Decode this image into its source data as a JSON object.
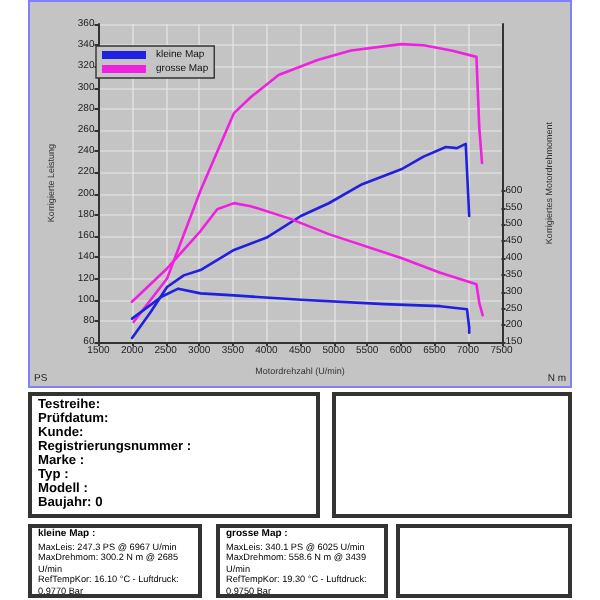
{
  "chart_data": {
    "type": "line",
    "xlabel": "Motordrehzahl (U/min)",
    "ylabel": "Korrigierte Leistung",
    "y2label": "Korrigiertes Motordrehmoment",
    "xlim": [
      1500,
      7500
    ],
    "xticks": [
      1500,
      2000,
      2500,
      3000,
      3500,
      4000,
      4500,
      5000,
      5500,
      6000,
      6500,
      7000,
      7500
    ],
    "ylim": [
      60,
      360
    ],
    "yticks": [
      60,
      80,
      100,
      120,
      140,
      160,
      180,
      200,
      220,
      240,
      260,
      280,
      300,
      320,
      340,
      360
    ],
    "y2lim": [
      150,
      1095
    ],
    "y2ticks": [
      150,
      200,
      250,
      300,
      350,
      400,
      450,
      500,
      550,
      600
    ],
    "grid": true,
    "legend": "top left",
    "marker": "none",
    "line_style": "solid",
    "series": [
      {
        "name": "kleine Map",
        "color": "#2020e0",
        "x": [
          2000,
          2272,
          2521,
          2770,
          3019,
          3517,
          4015,
          4513,
          4928,
          5426,
          6007,
          6339,
          6671,
          6837,
          6967,
          7019
        ],
        "values": [
          64,
          88,
          112,
          123,
          128,
          147,
          159,
          179,
          191,
          209,
          223,
          235,
          244,
          243,
          247,
          179
        ]
      },
      {
        "name": "grosse Map",
        "color": "#f020e0",
        "x": [
          2023,
          2521,
          3019,
          3517,
          3766,
          4181,
          4762,
          5260,
          6007,
          6339,
          6754,
          7127,
          7169,
          7210
        ],
        "values": [
          79,
          120,
          203,
          276,
          291,
          312,
          326,
          335,
          341,
          340,
          335,
          329,
          262,
          229
        ]
      },
      {
        "color": "#2020e0",
        "axis": "y2",
        "x": [
          2000,
          2438,
          2687,
          3019,
          3517,
          4513,
          5758,
          6588,
          6986,
          7019,
          7019
        ],
        "values": [
          220,
          285,
          309,
          295,
          289,
          276,
          263,
          257,
          248,
          193,
          178
        ]
      },
      {
        "color": "#f020e0",
        "axis": "y2",
        "x": [
          1998,
          2521,
          3019,
          3268,
          3517,
          3766,
          4347,
          4928,
          6007,
          6588,
          7127,
          7169,
          7219
        ],
        "values": [
          270,
          369,
          480,
          545,
          563,
          554,
          517,
          471,
          400,
          356,
          322,
          267,
          230
        ]
      }
    ],
    "annotations": [
      "PS",
      "N m",
      "Testreihe:",
      "Prüfdatum:",
      "Kunde:",
      "Registrierungsnummer :",
      "Marke :",
      "Typ :",
      "Modell :",
      "Baujahr: 0",
      "kleine Map :",
      "MaxLeis: 247.3 PS @ 6967 U/min",
      "MaxDrehmom: 300.2 N m @ 2685 U/min",
      "RefTempKor: 16.10 °C - Luftdruck: 0.9770 Bar",
      "grosse Map :",
      "MaxLeis: 340.1 PS @ 6025 U/min",
      "MaxDrehmom: 558.6 N m @ 3439 U/min",
      "RefTempKor: 19.30 °C - Luftdruck: 0.9750 Bar"
    ]
  }
}
